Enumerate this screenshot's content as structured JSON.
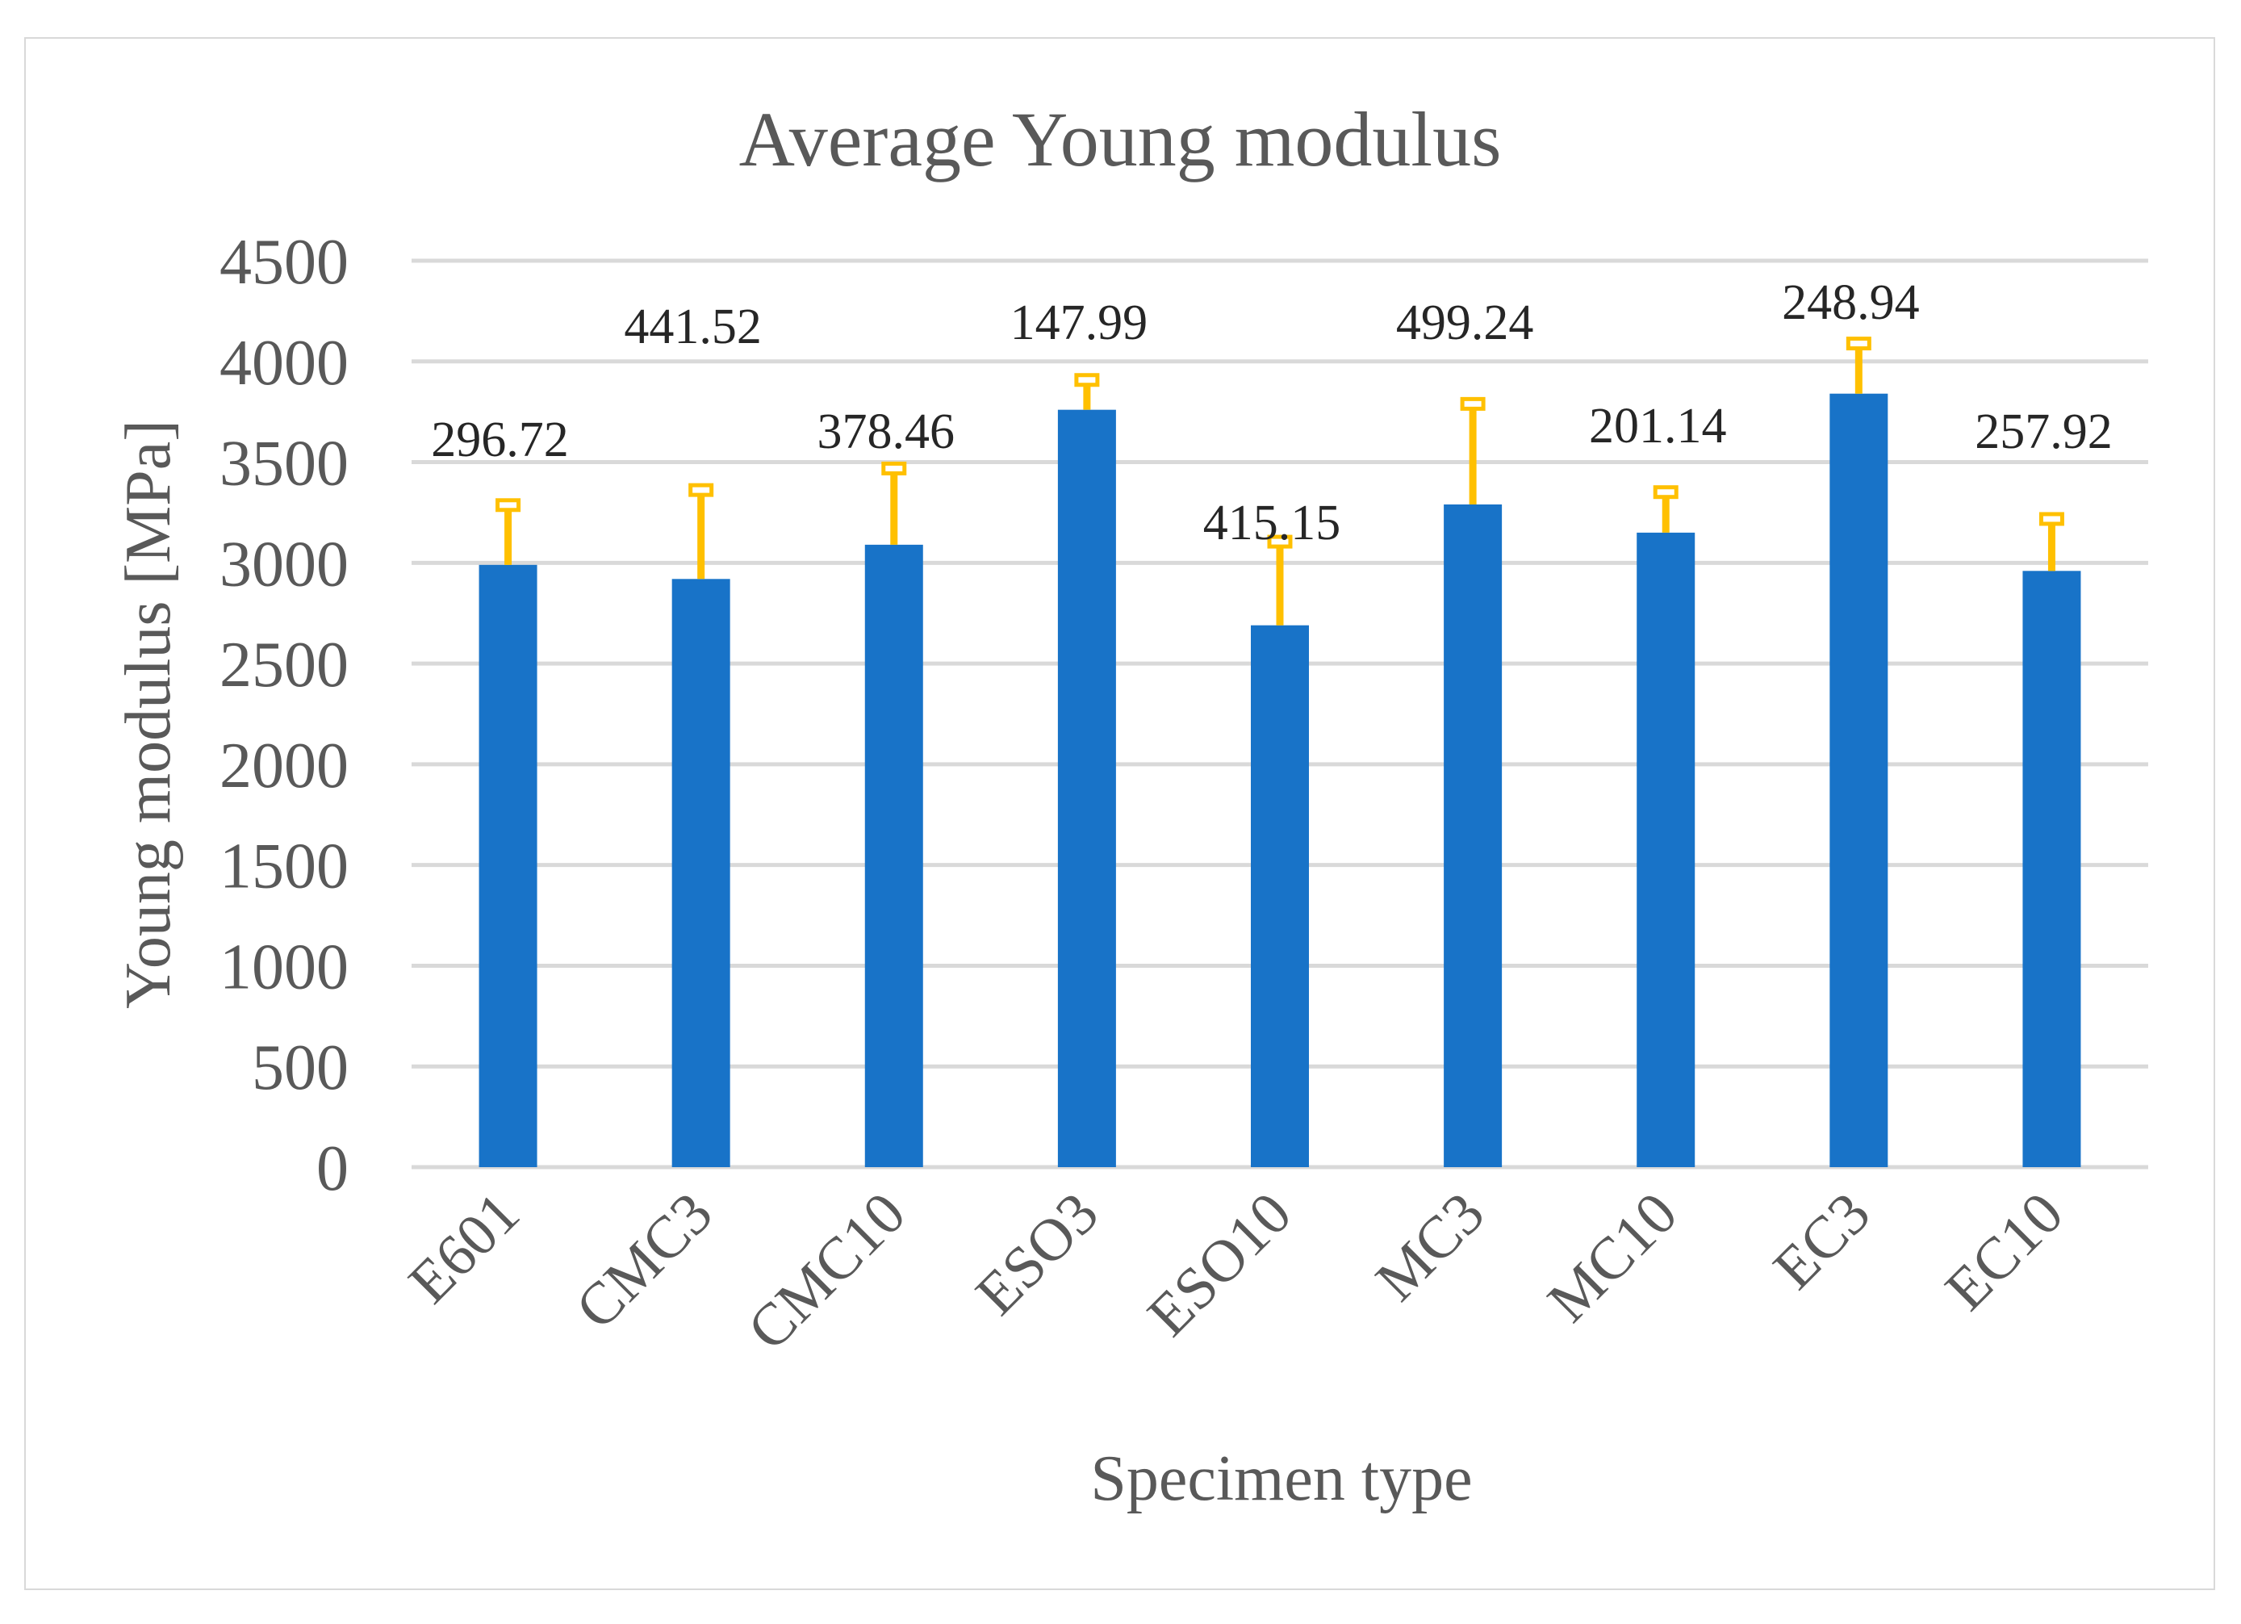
{
  "chart_data": {
    "type": "bar",
    "title": "Average Young modulus",
    "xlabel": "Specimen type",
    "ylabel": "Young modulus [MPa]",
    "ylim": [
      0,
      4500
    ],
    "yticks": [
      0,
      500,
      1000,
      1500,
      2000,
      2500,
      3000,
      3500,
      4000,
      4500
    ],
    "grid": true,
    "categories": [
      "E601",
      "CMC3",
      "CMC10",
      "ESO3",
      "ESO10",
      "MC3",
      "MC10",
      "EC3",
      "EC10"
    ],
    "values": [
      2990,
      2920,
      3090,
      3760,
      2690,
      3290,
      3150,
      3840,
      2960
    ],
    "error": [
      296.72,
      441.52,
      378.46,
      147.99,
      415.15,
      499.24,
      201.14,
      248.94,
      257.92
    ],
    "data_labels": [
      "296.72",
      "441.52",
      "378.46",
      "147.99",
      "415.15",
      "499.24",
      "201.14",
      "248.94",
      "257.92"
    ],
    "colors": {
      "bar": "#1873c8",
      "error_bar": "#ffc000",
      "grid": "#d9d9d9",
      "text": "#595959"
    }
  }
}
